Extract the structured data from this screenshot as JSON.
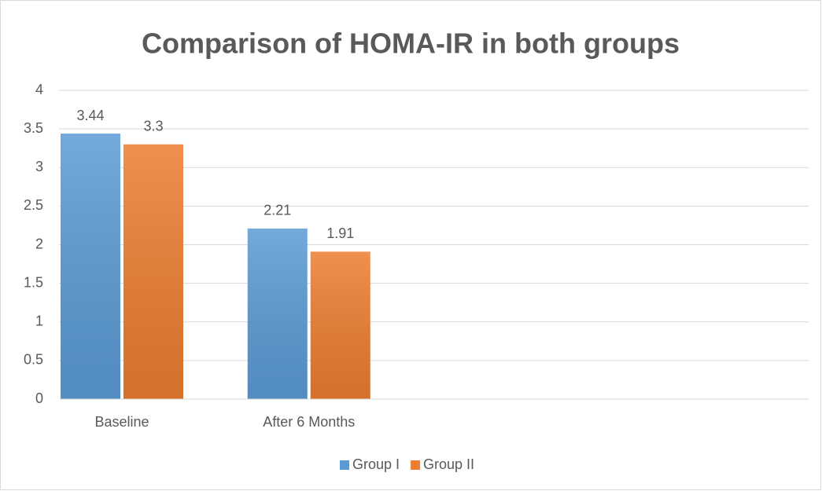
{
  "chart_data": {
    "type": "bar",
    "title": "Comparison of HOMA-IR in both groups",
    "categories": [
      "Baseline",
      "After 6 Months",
      null,
      null
    ],
    "series": [
      {
        "name": "Group I",
        "color": "#5b9bd5",
        "values": [
          3.44,
          2.21,
          null,
          null
        ]
      },
      {
        "name": "Group II",
        "color": "#ed7d31",
        "values": [
          3.3,
          1.91,
          null,
          null
        ]
      }
    ],
    "ylim": [
      0,
      4
    ],
    "yticks": [
      0,
      0.5,
      1,
      1.5,
      2,
      2.5,
      3,
      3.5,
      4
    ],
    "grid": true,
    "legend": "bottom"
  }
}
